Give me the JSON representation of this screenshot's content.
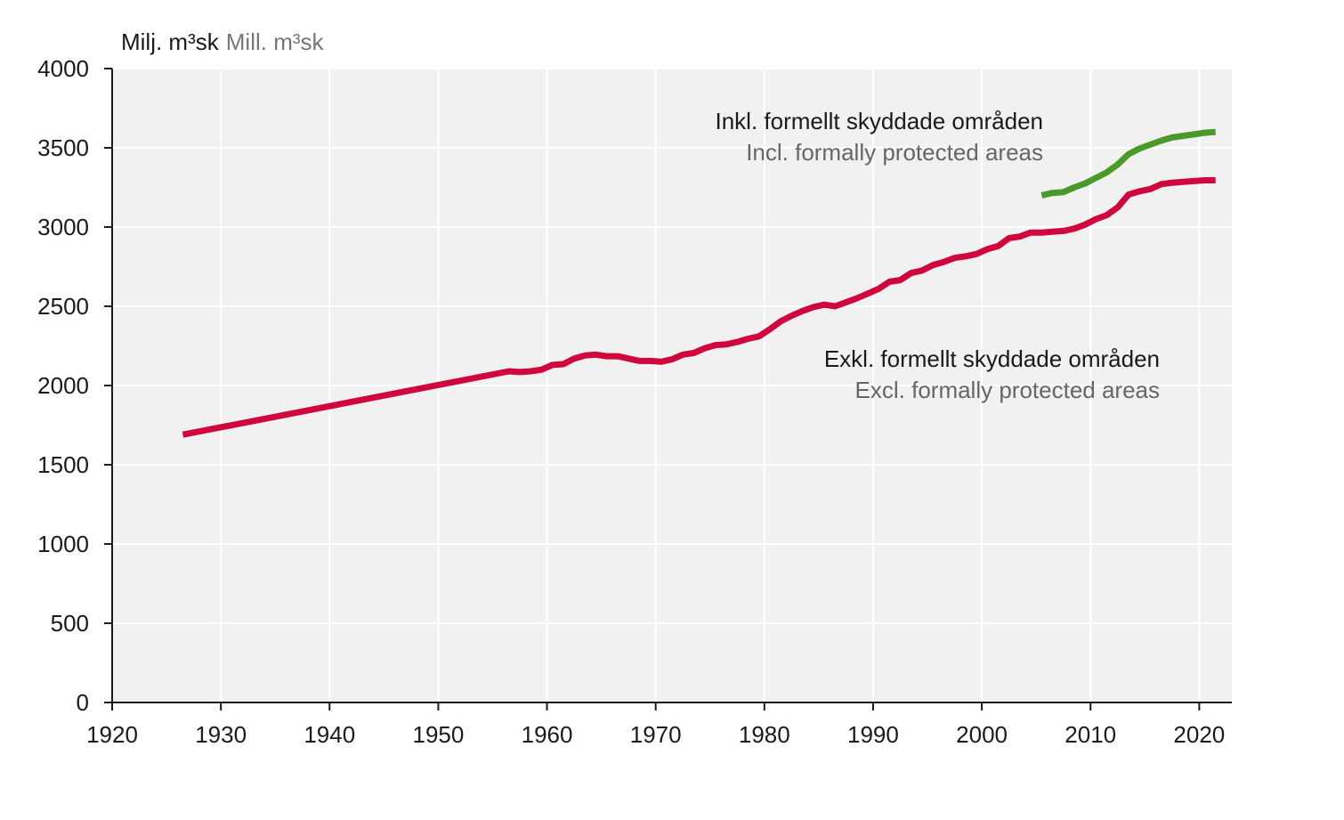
{
  "chart_data": {
    "type": "line",
    "unit_label_sv": "Milj. m³sk",
    "unit_label_en": "Mill. m³sk",
    "xlim": [
      1920,
      2023
    ],
    "ylim": [
      0,
      4000
    ],
    "x_ticks": [
      "1920",
      "1930",
      "1940",
      "1950",
      "1960",
      "1970",
      "1980",
      "1990",
      "2000",
      "2010",
      "2020"
    ],
    "y_ticks": [
      "0",
      "500",
      "1000",
      "1500",
      "2000",
      "2500",
      "3000",
      "3500",
      "4000"
    ],
    "grid": true,
    "series": [
      {
        "name": "Exkl. formellt skyddade områden",
        "name_en": "Excl. formally protected areas",
        "color": "#d0073d",
        "x": [
          1926.5,
          1956.5,
          1957.5,
          1958.5,
          1959.5,
          1960.5,
          1961.5,
          1962.5,
          1963.5,
          1964.5,
          1965.5,
          1966.5,
          1967.5,
          1968.5,
          1969.5,
          1970.5,
          1971.5,
          1972.5,
          1973.5,
          1974.5,
          1975.5,
          1976.5,
          1977.5,
          1978.5,
          1979.5,
          1980.5,
          1981.5,
          1982.5,
          1983.5,
          1984.5,
          1985.5,
          1986.5,
          1987.5,
          1988.5,
          1989.5,
          1990.5,
          1991.5,
          1992.5,
          1993.5,
          1994.5,
          1995.5,
          1996.5,
          1997.5,
          1998.5,
          1999.5,
          2000.5,
          2001.5,
          2002.5,
          2003.5,
          2004.5,
          2005.5,
          2006.5,
          2007.5,
          2008.5,
          2009.5,
          2010.5,
          2011.5,
          2012.5,
          2013.5,
          2014.5,
          2015.5,
          2016.5,
          2017.5,
          2018.5,
          2019.5,
          2020.5,
          2021.5
        ],
        "values": [
          1690,
          2090,
          2085,
          2090,
          2100,
          2130,
          2135,
          2170,
          2190,
          2195,
          2185,
          2185,
          2170,
          2155,
          2155,
          2150,
          2165,
          2195,
          2205,
          2235,
          2255,
          2260,
          2275,
          2295,
          2310,
          2355,
          2405,
          2440,
          2470,
          2495,
          2510,
          2500,
          2525,
          2550,
          2580,
          2610,
          2655,
          2665,
          2710,
          2725,
          2760,
          2780,
          2805,
          2815,
          2830,
          2860,
          2880,
          2930,
          2940,
          2965,
          2965,
          2970,
          2975,
          2990,
          3015,
          3050,
          3075,
          3125,
          3205,
          3225,
          3240,
          3270,
          3280,
          3285,
          3290,
          3295,
          3295
        ]
      },
      {
        "name": "Inkl. formellt skyddade områden",
        "name_en": "Incl. formally protected areas",
        "color": "#4a9a2b",
        "x": [
          2005.5,
          2006.5,
          2007.5,
          2008.5,
          2009.5,
          2010.5,
          2011.5,
          2012.5,
          2013.5,
          2014.5,
          2015.5,
          2016.5,
          2017.5,
          2018.5,
          2019.5,
          2020.5,
          2021.5
        ],
        "values": [
          3200,
          3215,
          3220,
          3250,
          3275,
          3310,
          3345,
          3395,
          3460,
          3495,
          3520,
          3545,
          3565,
          3575,
          3585,
          3595,
          3600
        ]
      }
    ]
  }
}
